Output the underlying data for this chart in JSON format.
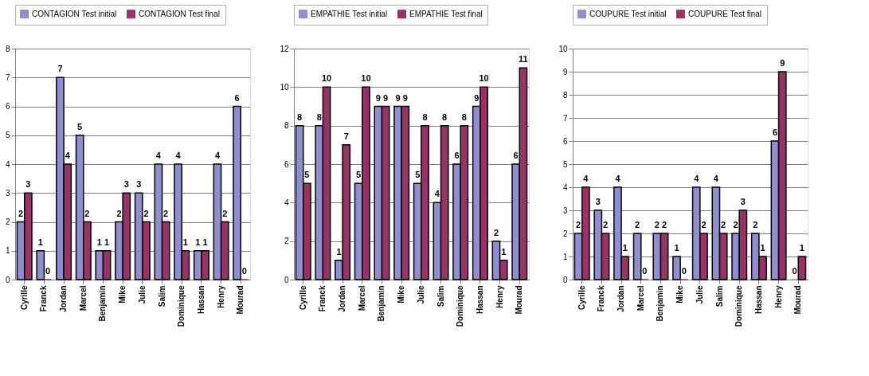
{
  "chart_data": [
    {
      "type": "bar",
      "categories": [
        "Cyrille",
        "Franck",
        "Jordan",
        "Marcel",
        "Benjamin",
        "Mike",
        "Julie",
        "Salim",
        "Dominique",
        "Hassan",
        "Henry",
        "Mourad"
      ],
      "series": [
        {
          "name": "CONTAGION Test initial",
          "color": "#8e8ed0",
          "values": [
            2,
            1,
            7,
            5,
            1,
            2,
            3,
            4,
            4,
            1,
            4,
            6
          ]
        },
        {
          "name": "CONTAGION Test final",
          "color": "#993366",
          "values": [
            3,
            0,
            4,
            2,
            1,
            3,
            2,
            2,
            1,
            1,
            2,
            0
          ]
        }
      ],
      "ylim": [
        0,
        8
      ],
      "yticks": [
        0,
        1,
        2,
        3,
        4,
        5,
        6,
        7,
        8
      ],
      "grid": "y",
      "legend": "top",
      "data_labels": true
    },
    {
      "type": "bar",
      "categories": [
        "Cyrille",
        "Franck",
        "Jordan",
        "Marcel",
        "Benjamin",
        "Mike",
        "Julie",
        "Salim",
        "Dominique",
        "Hassan",
        "Henry",
        "Mourad"
      ],
      "series": [
        {
          "name": "EMPATHIE Test initial",
          "color": "#8e8ed0",
          "values": [
            8,
            8,
            1,
            5,
            9,
            9,
            5,
            4,
            6,
            9,
            2,
            6
          ]
        },
        {
          "name": "EMPATHIE Test final",
          "color": "#993366",
          "values": [
            5,
            10,
            7,
            10,
            9,
            9,
            8,
            8,
            8,
            10,
            1,
            11
          ]
        }
      ],
      "ylim": [
        0,
        12
      ],
      "yticks": [
        0,
        2,
        4,
        6,
        8,
        10,
        12
      ],
      "grid": "y",
      "legend": "top",
      "data_labels": true
    },
    {
      "type": "bar",
      "categories": [
        "Cyrille",
        "Franck",
        "Jordan",
        "Marcel",
        "Benjamin",
        "Mike",
        "Julie",
        "Salim",
        "Dominique",
        "Hassan",
        "Henry",
        "Mourad"
      ],
      "series": [
        {
          "name": "COUPURE Test initial",
          "color": "#8e8ed0",
          "values": [
            2,
            3,
            4,
            2,
            2,
            1,
            4,
            4,
            2,
            2,
            6,
            0
          ]
        },
        {
          "name": "COUPURE Test final",
          "color": "#993366",
          "values": [
            4,
            2,
            1,
            0,
            2,
            0,
            2,
            2,
            3,
            1,
            9,
            1
          ]
        }
      ],
      "ylim": [
        0,
        10
      ],
      "yticks": [
        0,
        1,
        2,
        3,
        4,
        5,
        6,
        7,
        8,
        9,
        10
      ],
      "grid": "y",
      "legend": "top",
      "data_labels": true
    }
  ]
}
